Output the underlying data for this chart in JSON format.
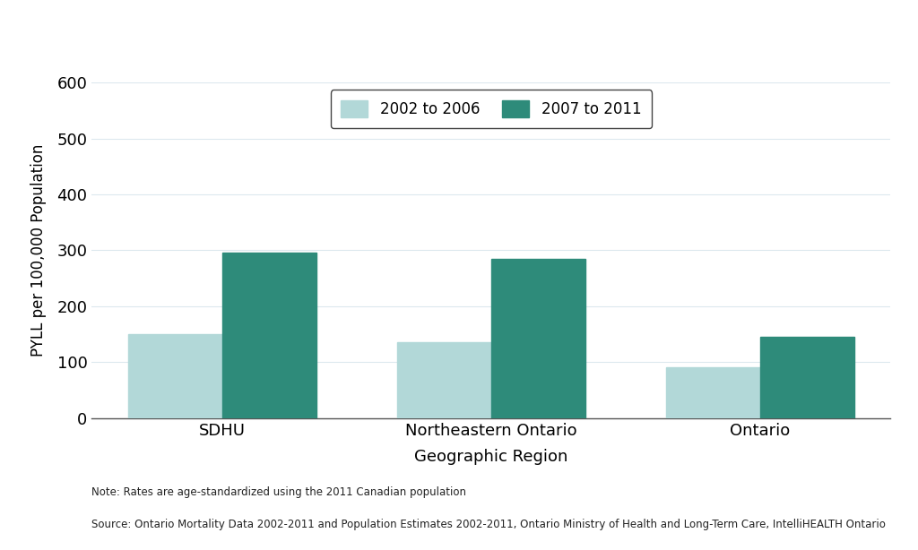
{
  "categories": [
    "SDHU",
    "Northeastern Ontario",
    "Ontario"
  ],
  "values_2002_2006": [
    150,
    135,
    90
  ],
  "values_2007_2011": [
    295,
    285,
    145
  ],
  "color_2002_2006": "#b2d8d8",
  "color_2007_2011": "#2e8b7a",
  "ylabel": "PYLL per 100,000 Population",
  "xlabel": "Geographic Region",
  "ylim": [
    0,
    600
  ],
  "yticks": [
    0,
    100,
    200,
    300,
    400,
    500,
    600
  ],
  "legend_labels": [
    "2002 to 2006",
    "2007 to 2011"
  ],
  "note_line1": "Note: Rates are age-standardized using the 2011 Canadian population",
  "note_line2": "Source: Ontario Mortality Data 2002-2011 and Population Estimates 2002-2011, Ontario Ministry of Health and Long-Term Care, IntelliHEALTH Ontario",
  "bar_width": 0.35,
  "background_color": "#ffffff",
  "grid_color": "#dce8ee"
}
